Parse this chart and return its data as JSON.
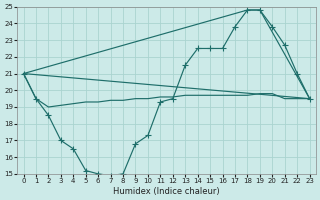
{
  "xlabel": "Humidex (Indice chaleur)",
  "bg_color": "#cceae8",
  "grid_color": "#aad4d0",
  "line_color": "#1e6e6a",
  "xlim": [
    -0.5,
    23.5
  ],
  "ylim": [
    15,
    25
  ],
  "xticks": [
    0,
    1,
    2,
    3,
    4,
    5,
    6,
    7,
    8,
    9,
    10,
    11,
    12,
    13,
    14,
    15,
    16,
    17,
    18,
    19,
    20,
    21,
    22,
    23
  ],
  "yticks": [
    15,
    16,
    17,
    18,
    19,
    20,
    21,
    22,
    23,
    24,
    25
  ],
  "line1_x": [
    0,
    1,
    2,
    3,
    4,
    5,
    6,
    7,
    8,
    9,
    10,
    11,
    12,
    13,
    14,
    15,
    16,
    17,
    18,
    19,
    20,
    21,
    22,
    23
  ],
  "line1_y": [
    21.0,
    19.5,
    19.0,
    19.1,
    19.2,
    19.3,
    19.3,
    19.4,
    19.4,
    19.5,
    19.5,
    19.6,
    19.6,
    19.7,
    19.7,
    19.7,
    19.7,
    19.7,
    19.7,
    19.8,
    19.8,
    19.5,
    19.5,
    19.5
  ],
  "line2_x": [
    0,
    23
  ],
  "line2_y": [
    21.0,
    19.5
  ],
  "line3_x": [
    0,
    1,
    2,
    3,
    4,
    5,
    6,
    7,
    8,
    9,
    10,
    11,
    12,
    13,
    14,
    15,
    16,
    17,
    18,
    19,
    20,
    21,
    22,
    23
  ],
  "line3_y": [
    21.0,
    19.5,
    18.5,
    17.0,
    16.5,
    15.2,
    15.0,
    14.9,
    15.0,
    16.8,
    17.3,
    19.3,
    19.5,
    21.5,
    22.5,
    22.5,
    22.5,
    23.8,
    24.8,
    24.8,
    23.8,
    22.7,
    21.0,
    19.5
  ],
  "line4_x": [
    0,
    18,
    19,
    23
  ],
  "line4_y": [
    21.0,
    24.8,
    24.8,
    19.5
  ]
}
